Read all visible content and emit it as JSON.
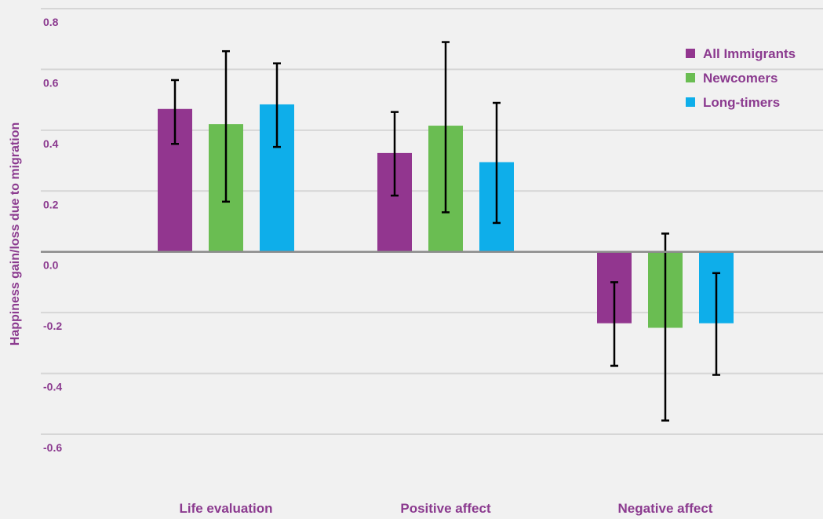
{
  "colors": {
    "background": "#f1f1f1",
    "text": "#8b3a8f",
    "grid": "#d6d6d6",
    "zero_line": "#8c8c8c",
    "error_bar": "#000000"
  },
  "chart_data": {
    "type": "bar",
    "title": "",
    "xlabel": "",
    "ylabel": "Happiness gain/loss due to migration",
    "ylim": [
      -0.6,
      0.8
    ],
    "yticks": [
      "0.8",
      "0.6",
      "0.4",
      "0.2",
      "0.0",
      "-0.2",
      "-0.4",
      "-0.6"
    ],
    "grid": true,
    "legend_position": "top-right",
    "categories": [
      "Life evaluation",
      "Positive affect",
      "Negative affect"
    ],
    "series": [
      {
        "name": "All Immigrants",
        "color": "#92368f",
        "values": [
          0.47,
          0.325,
          -0.235
        ],
        "err_low": [
          0.355,
          0.185,
          -0.375
        ],
        "err_high": [
          0.565,
          0.46,
          -0.1
        ]
      },
      {
        "name": "Newcomers",
        "color": "#6abd52",
        "values": [
          0.42,
          0.415,
          -0.25
        ],
        "err_low": [
          0.165,
          0.13,
          -0.555
        ],
        "err_high": [
          0.66,
          0.69,
          0.06
        ]
      },
      {
        "name": "Long-timers",
        "color": "#0eaeea",
        "values": [
          0.485,
          0.295,
          -0.235
        ],
        "err_low": [
          0.345,
          0.095,
          -0.405
        ],
        "err_high": [
          0.62,
          0.49,
          -0.07
        ]
      }
    ]
  }
}
